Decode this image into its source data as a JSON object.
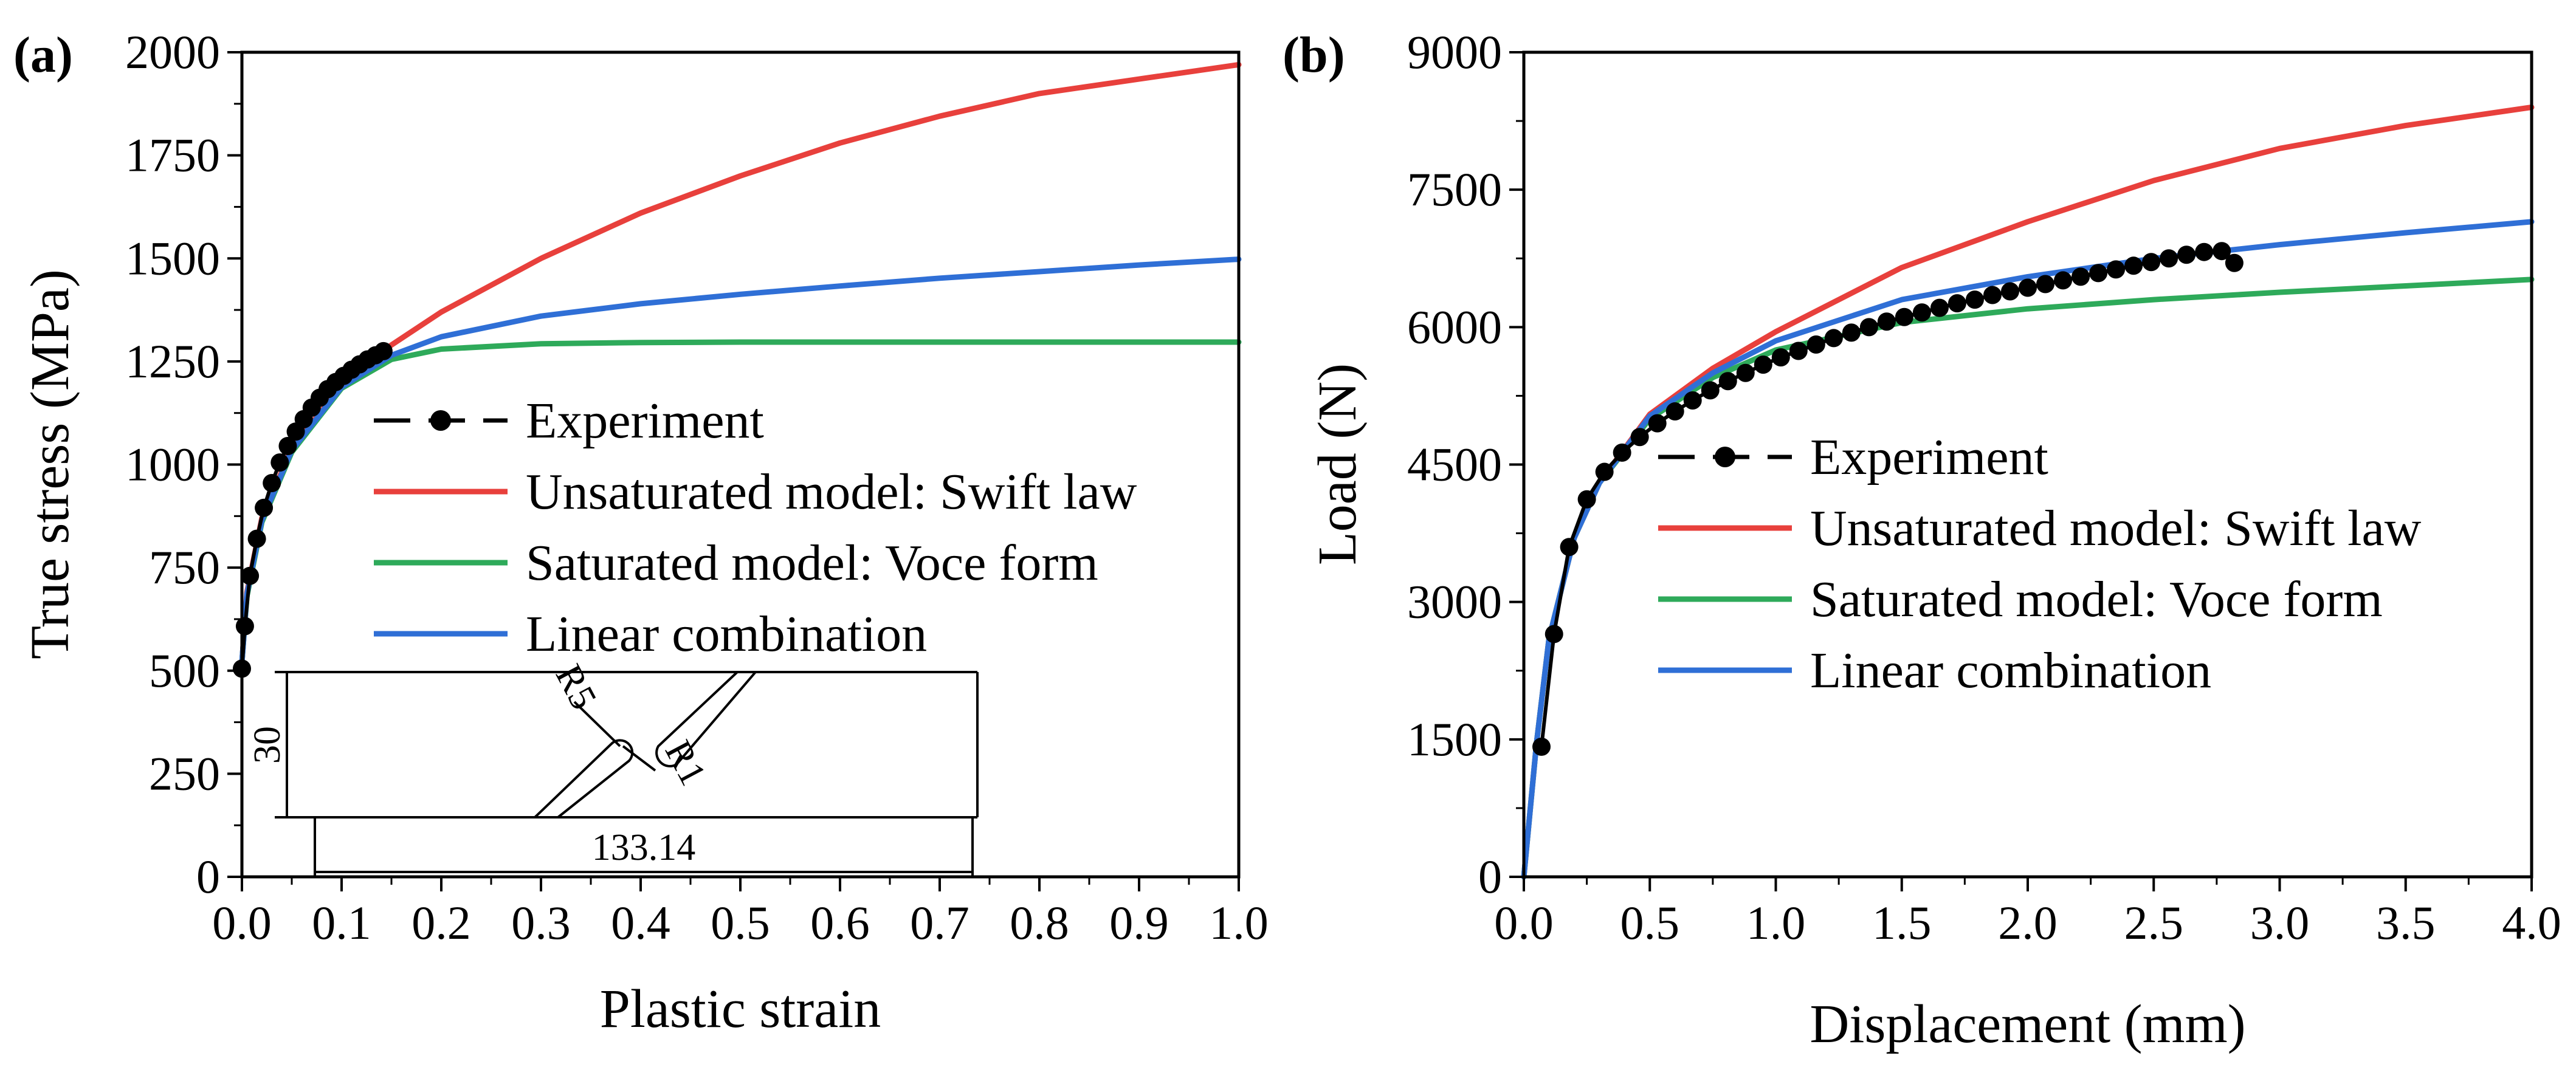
{
  "chart_data": [
    {
      "type": "line",
      "panel_label": "(a)",
      "xlabel": "Plastic strain",
      "ylabel": "True stress (MPa)",
      "xlim": [
        0,
        1.0
      ],
      "ylim": [
        0,
        2000
      ],
      "xticks": [
        "0.0",
        "0.1",
        "0.2",
        "0.3",
        "0.4",
        "0.5",
        "0.6",
        "0.7",
        "0.8",
        "0.9",
        "1.0"
      ],
      "yticks": [
        "0",
        "250",
        "500",
        "750",
        "1000",
        "1250",
        "1500",
        "1750",
        "2000"
      ],
      "legend_position": "center-left",
      "series": [
        {
          "name": "Experiment",
          "color": "#000000",
          "marker": "circle",
          "x": [
            0.0,
            0.003,
            0.008,
            0.015,
            0.022,
            0.03,
            0.038,
            0.046,
            0.054,
            0.062,
            0.07,
            0.078,
            0.086,
            0.094,
            0.102,
            0.11,
            0.118,
            0.126,
            0.134,
            0.142
          ],
          "y": [
            505,
            608,
            730,
            820,
            895,
            955,
            1005,
            1045,
            1080,
            1110,
            1138,
            1162,
            1183,
            1200,
            1215,
            1230,
            1243,
            1255,
            1265,
            1275
          ]
        },
        {
          "name": "Unsaturated model: Swift law",
          "color": "#e8403c",
          "x": [
            0.0,
            0.005,
            0.02,
            0.05,
            0.1,
            0.15,
            0.2,
            0.3,
            0.4,
            0.5,
            0.6,
            0.7,
            0.8,
            0.9,
            1.0
          ],
          "y": [
            520,
            690,
            870,
            1040,
            1190,
            1290,
            1370,
            1500,
            1610,
            1700,
            1780,
            1845,
            1900,
            1935,
            1970
          ]
        },
        {
          "name": "Saturated model: Voce form",
          "color": "#2eaa5a",
          "x": [
            0.0,
            0.005,
            0.02,
            0.05,
            0.1,
            0.15,
            0.2,
            0.3,
            0.4,
            0.5,
            0.6,
            0.8,
            1.0
          ],
          "y": [
            520,
            680,
            860,
            1030,
            1185,
            1255,
            1280,
            1293,
            1296,
            1297,
            1297,
            1297,
            1297
          ]
        },
        {
          "name": "Linear combination",
          "color": "#2f6fd6",
          "x": [
            0.0,
            0.005,
            0.02,
            0.05,
            0.1,
            0.15,
            0.2,
            0.3,
            0.4,
            0.5,
            0.6,
            0.7,
            0.8,
            0.9,
            1.0
          ],
          "y": [
            520,
            685,
            865,
            1035,
            1188,
            1265,
            1310,
            1360,
            1390,
            1413,
            1433,
            1452,
            1468,
            1484,
            1498
          ]
        }
      ],
      "inset": {
        "labels": [
          "30",
          "R5",
          "R1",
          "133.14"
        ]
      }
    },
    {
      "type": "line",
      "panel_label": "(b)",
      "xlabel": "Displacement (mm)",
      "ylabel": "Load (N)",
      "xlim": [
        0,
        4.0
      ],
      "ylim": [
        0,
        9000
      ],
      "xticks": [
        "0.0",
        "0.5",
        "1.0",
        "1.5",
        "2.0",
        "2.5",
        "3.0",
        "3.5",
        "4.0"
      ],
      "yticks": [
        "0",
        "1500",
        "3000",
        "4500",
        "6000",
        "7500",
        "9000"
      ],
      "legend_position": "center-right",
      "series": [
        {
          "name": "Experiment",
          "color": "#000000",
          "marker": "circle",
          "x": [
            0.07,
            0.12,
            0.18,
            0.25,
            0.32,
            0.39,
            0.46,
            0.53,
            0.6,
            0.67,
            0.74,
            0.81,
            0.88,
            0.95,
            1.02,
            1.09,
            1.16,
            1.23,
            1.3,
            1.37,
            1.44,
            1.51,
            1.58,
            1.65,
            1.72,
            1.79,
            1.86,
            1.93,
            2.0,
            2.07,
            2.14,
            2.21,
            2.28,
            2.35,
            2.42,
            2.49,
            2.56,
            2.63,
            2.7,
            2.77,
            2.82
          ],
          "y": [
            1420,
            2650,
            3600,
            4120,
            4420,
            4630,
            4800,
            4950,
            5080,
            5200,
            5310,
            5410,
            5500,
            5590,
            5670,
            5740,
            5810,
            5880,
            5940,
            6000,
            6060,
            6110,
            6160,
            6210,
            6260,
            6300,
            6350,
            6390,
            6430,
            6470,
            6510,
            6550,
            6590,
            6630,
            6670,
            6710,
            6750,
            6790,
            6820,
            6830,
            6700
          ]
        },
        {
          "name": "Unsaturated model: Swift law",
          "color": "#e8403c",
          "x": [
            0.0,
            0.05,
            0.1,
            0.2,
            0.3,
            0.5,
            0.75,
            1.0,
            1.5,
            2.0,
            2.5,
            3.0,
            3.5,
            4.0
          ],
          "y": [
            0,
            1450,
            2600,
            3700,
            4300,
            5050,
            5550,
            5950,
            6650,
            7150,
            7600,
            7950,
            8200,
            8400
          ]
        },
        {
          "name": "Saturated model: Voce form",
          "color": "#2eaa5a",
          "x": [
            0.0,
            0.05,
            0.1,
            0.2,
            0.3,
            0.5,
            0.75,
            1.0,
            1.5,
            2.0,
            2.5,
            3.0,
            3.5,
            4.0
          ],
          "y": [
            0,
            1450,
            2600,
            3700,
            4300,
            5000,
            5450,
            5750,
            6050,
            6200,
            6300,
            6380,
            6450,
            6520
          ]
        },
        {
          "name": "Linear combination",
          "color": "#2f6fd6",
          "x": [
            0.0,
            0.05,
            0.1,
            0.2,
            0.3,
            0.5,
            0.75,
            1.0,
            1.5,
            2.0,
            2.5,
            3.0,
            3.5,
            4.0
          ],
          "y": [
            0,
            1450,
            2600,
            3700,
            4300,
            5030,
            5500,
            5850,
            6300,
            6550,
            6750,
            6900,
            7030,
            7150
          ]
        }
      ]
    }
  ]
}
